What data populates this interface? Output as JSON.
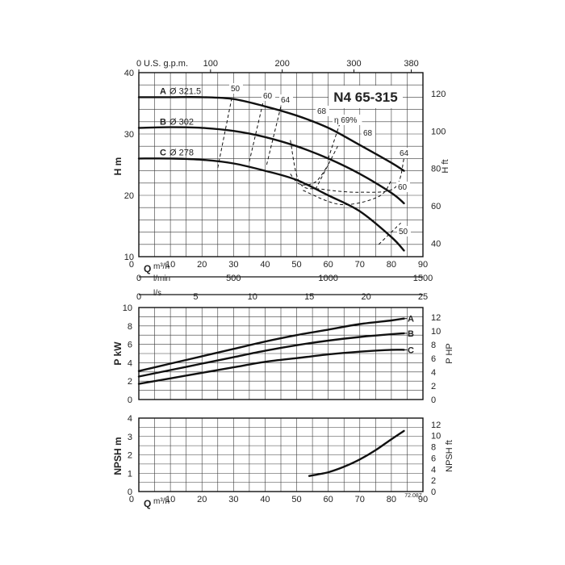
{
  "chart_data": [
    {
      "type": "line",
      "title": "N4 65-315",
      "xlabel": "Q m³/h",
      "ylabel": "H m",
      "ylabel_right": "H ft",
      "xlim": [
        0,
        90
      ],
      "ylim": [
        10,
        40
      ],
      "x_ticks": [
        "0",
        "10",
        "20",
        "30",
        "40",
        "50",
        "60",
        "70",
        "80",
        "90"
      ],
      "y_ticks": [
        "10",
        "20",
        "30",
        "40"
      ],
      "y_right_ticks": [
        "40",
        "60",
        "80",
        "100",
        "120"
      ],
      "top_axis": {
        "unit": "U.S. g.p.m.",
        "ticks": [
          "0",
          "100",
          "200",
          "300",
          "380"
        ],
        "values": [
          0,
          100,
          200,
          300,
          380
        ]
      },
      "secondary_axes": [
        {
          "unit": "l/min",
          "ticks": [
            "0",
            "500",
            "1000",
            "1500"
          ],
          "values": [
            0,
            500,
            1000,
            1500
          ]
        },
        {
          "unit": "l/s",
          "ticks": [
            "0",
            "5",
            "10",
            "15",
            "20",
            "25"
          ],
          "values": [
            0,
            5,
            10,
            15,
            20,
            25
          ]
        }
      ],
      "series": [
        {
          "name": "A",
          "diameter": "Ø 321.5",
          "x": [
            0,
            10,
            20,
            30,
            40,
            50,
            60,
            70,
            80,
            84
          ],
          "y": [
            36,
            36,
            36,
            35.7,
            34.5,
            33,
            31,
            28.2,
            25.3,
            24
          ]
        },
        {
          "name": "B",
          "diameter": "Ø 302",
          "x": [
            0,
            10,
            20,
            30,
            40,
            50,
            60,
            70,
            80,
            84
          ],
          "y": [
            31,
            31.1,
            31,
            30.5,
            29.5,
            28,
            26,
            23.5,
            20.4,
            18.7
          ]
        },
        {
          "name": "C",
          "diameter": "Ø 278",
          "x": [
            0,
            10,
            20,
            30,
            40,
            50,
            60,
            70,
            80,
            84
          ],
          "y": [
            26,
            26,
            25.8,
            25.2,
            24,
            22.5,
            20,
            17.4,
            13.2,
            11
          ]
        }
      ],
      "efficiency": {
        "labels": [
          "50",
          "60",
          "64",
          "68",
          "η 69%",
          "68",
          "64",
          "60",
          "50"
        ],
        "curves": [
          {
            "x": [
              25,
              29.5
            ],
            "y": [
              24.5,
              36
            ]
          },
          {
            "x": [
              35,
              39.5
            ],
            "y": [
              25.5,
              35.5
            ]
          },
          {
            "x": [
              40.5,
              45
            ],
            "y": [
              25,
              34.5
            ]
          },
          {
            "x": [
              48,
              51,
              56,
              60
            ],
            "y": [
              23.5,
              21.8,
              22.2,
              25
            ]
          },
          {
            "x": [
              60,
              64.5
            ],
            "y": [
              26,
              33
            ]
          },
          {
            "x": [
              56,
              63
            ],
            "y": [
              21,
              28
            ]
          },
          {
            "x": [
              48,
              51,
              58,
              70,
              81,
              84
            ],
            "y": [
              29,
              22,
              21,
              20.5,
              21.2,
              26
            ]
          },
          {
            "x": [
              52,
              64,
              76,
              80
            ],
            "y": [
              20.8,
              18.5,
              19.8,
              22.5
            ]
          },
          {
            "x": [
              76,
              83
            ],
            "y": [
              12,
              15.5
            ]
          }
        ]
      }
    },
    {
      "type": "line",
      "xlabel": "Q m³/h",
      "ylabel": "P kW",
      "ylabel_right": "P HP",
      "xlim": [
        0,
        90
      ],
      "ylim": [
        0,
        10
      ],
      "y_ticks": [
        "0",
        "2",
        "4",
        "6",
        "8",
        "10"
      ],
      "y_right_ticks": [
        "0",
        "2",
        "4",
        "6",
        "8",
        "10",
        "12"
      ],
      "series": [
        {
          "name": "A",
          "x": [
            0,
            10,
            20,
            30,
            40,
            50,
            60,
            70,
            80,
            84
          ],
          "y": [
            3.1,
            3.9,
            4.7,
            5.5,
            6.3,
            7.0,
            7.6,
            8.2,
            8.6,
            8.8
          ]
        },
        {
          "name": "B",
          "x": [
            0,
            10,
            20,
            30,
            40,
            50,
            60,
            70,
            80,
            84
          ],
          "y": [
            2.5,
            3.2,
            3.9,
            4.6,
            5.3,
            5.9,
            6.4,
            6.8,
            7.1,
            7.2
          ]
        },
        {
          "name": "C",
          "x": [
            0,
            10,
            20,
            30,
            40,
            50,
            60,
            70,
            80,
            84
          ],
          "y": [
            1.7,
            2.3,
            2.9,
            3.5,
            4.1,
            4.5,
            4.9,
            5.2,
            5.4,
            5.4
          ]
        }
      ]
    },
    {
      "type": "line",
      "xlabel": "Q m³/h",
      "ylabel": "NPSH m",
      "ylabel_right": "NPSH ft",
      "xlim": [
        0,
        90
      ],
      "ylim": [
        0,
        4
      ],
      "x_ticks": [
        "0",
        "10",
        "20",
        "30",
        "40",
        "50",
        "60",
        "70",
        "80",
        "90"
      ],
      "y_ticks": [
        "0",
        "1",
        "2",
        "3",
        "4"
      ],
      "y_right_ticks": [
        "0",
        "2",
        "4",
        "6",
        "8",
        "10",
        "12"
      ],
      "code": "72.087",
      "series": [
        {
          "name": "",
          "x": [
            54,
            60,
            65,
            70,
            75,
            80,
            84
          ],
          "y": [
            0.85,
            1.05,
            1.35,
            1.75,
            2.25,
            2.85,
            3.3
          ]
        }
      ]
    }
  ],
  "ui": {
    "title": "N4 65-315",
    "top_unit": "U.S. g.p.m.",
    "h_label_left": "H m",
    "h_label_right": "H ft",
    "q_label": "Q",
    "q_unit": "m³/h",
    "lmin_unit": "l/min",
    "ls_unit": "l/s",
    "p_label_left": "P kW",
    "p_label_right": "P HP",
    "npsh_label_left": "NPSH m",
    "npsh_label_right": "NPSH ft",
    "code": "72.087"
  }
}
